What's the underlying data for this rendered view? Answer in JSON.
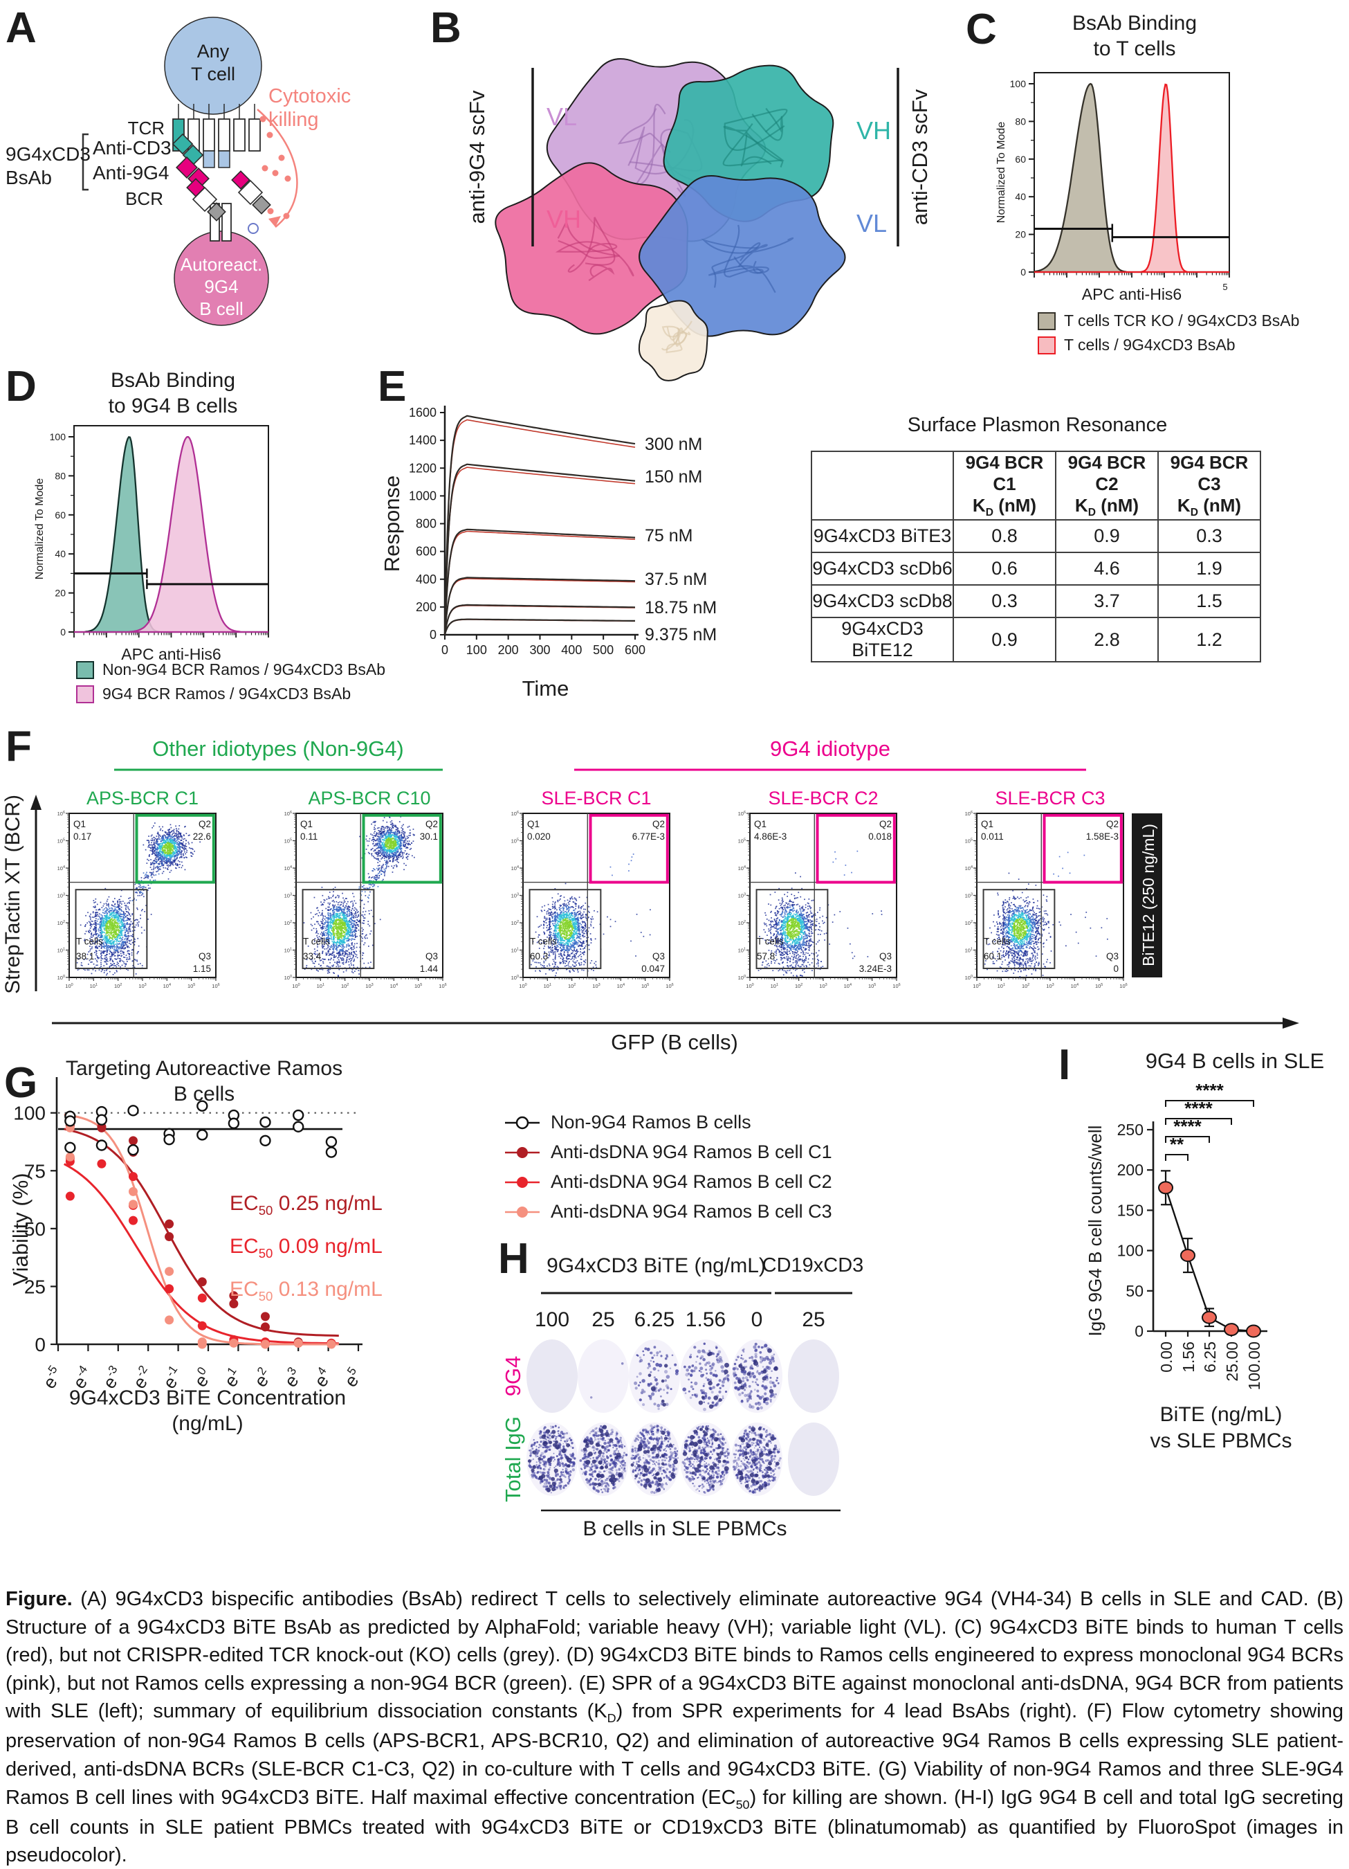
{
  "panels": {
    "a": {
      "label": "A",
      "t_cell1": "Any",
      "t_cell2": "T cell",
      "tcr": "TCR",
      "bsab1": "9G4xCD3",
      "bsab2": "BsAb",
      "anti_cd3": "Anti-CD3",
      "anti_9g4": "Anti-9G4",
      "bcr": "BCR",
      "cyto1": "Cytotoxic",
      "cyto2": "killing",
      "b1": "Autoreact.",
      "b2": "9G4",
      "b3": "B cell",
      "colors": {
        "t_cell": "#aac6e5",
        "b_cell": "#e27fb2",
        "teal": "#35b2a6",
        "magenta": "#e6007e",
        "salmon": "#f4837d"
      }
    },
    "b": {
      "label": "B",
      "left_scfv": "anti-9G4 scFv",
      "right_scfv": "anti-CD3 scFv",
      "vl_left": "VL",
      "vh_left": "VH",
      "vh_right": "VH",
      "vl_right": "VL",
      "colors": {
        "vl_left": "#c98fd4",
        "vh_left": "#ef5f98",
        "vh_right": "#2fb5a8",
        "vl_right": "#6189d6"
      }
    },
    "c": {
      "label": "C"
    },
    "d": {
      "label": "D"
    },
    "e": {
      "label": "E"
    },
    "f": {
      "label": "F"
    },
    "g": {
      "label": "G"
    },
    "h": {
      "label": "H"
    },
    "i": {
      "label": "I"
    }
  },
  "chart_data": [
    {
      "panel": "C",
      "type": "histogram",
      "title_lines": [
        "BsAb Binding",
        "to T cells"
      ],
      "xlabel": "APC anti-His6",
      "ylabel": "Normalized To Mode",
      "yticks": [
        0,
        20,
        40,
        60,
        80,
        100
      ],
      "x_end_tick": "5",
      "series": [
        {
          "name": "T cells TCR KO / 9G4xCD3 BsAb",
          "center": 0.29,
          "sigma": 0.05,
          "left_widen": 1.7,
          "height": 100,
          "fill": "#bab4a2",
          "stroke": "#35322a"
        },
        {
          "name": "T cells  / 9G4xCD3 BsAb",
          "center": 0.675,
          "sigma": 0.03,
          "left_widen": 1.15,
          "height": 100,
          "fill": "#f7bcc0",
          "stroke": "#ec1c24"
        }
      ],
      "gates": [
        {
          "y": 23,
          "x0": 0,
          "x1": 0.4
        },
        {
          "y": 18.5,
          "x0": 0.4,
          "x1": 1
        }
      ]
    },
    {
      "panel": "D",
      "type": "histogram",
      "title_lines": [
        "BsAb Binding",
        "to 9G4 B cells"
      ],
      "xlabel": "APC anti-His6",
      "ylabel": "Normalized To Mode",
      "yticks": [
        0,
        20,
        40,
        60,
        80,
        100
      ],
      "series": [
        {
          "name": "Non-9G4 BCR Ramos / 9G4xCD3 BsAb",
          "center": 0.285,
          "sigma": 0.042,
          "left_widen": 1.5,
          "height": 100,
          "fill": "#79bcad",
          "stroke": "#14332d"
        },
        {
          "name": "9G4 BCR Ramos / 9G4xCD3 BsAb",
          "center": 0.585,
          "sigma": 0.075,
          "left_widen": 1.1,
          "height": 100,
          "fill": "#f0c3dd",
          "stroke": "#b02f94"
        }
      ],
      "gates": [
        {
          "y": 30,
          "x0": 0,
          "x1": 0.375
        },
        {
          "y": 24.5,
          "x0": 0.375,
          "x1": 1
        }
      ]
    },
    {
      "panel": "E",
      "type": "line",
      "name": "SPR sensorgram",
      "ylabel": "Response",
      "xlabel": "Time",
      "xlim": [
        0,
        600
      ],
      "ylim": [
        0,
        1600
      ],
      "xtick_step": 100,
      "ytick_step": 200,
      "curves": [
        {
          "label": "300 nM",
          "peak": 1580,
          "end": 1375,
          "label_y": 650
        },
        {
          "label": "150 nM",
          "peak": 1230,
          "end": 1108,
          "label_y": 697
        },
        {
          "label": "75 nM",
          "peak": 760,
          "end": 700,
          "label_y": 782
        },
        {
          "label": "37.5 nM",
          "peak": 412,
          "end": 388,
          "label_y": 845
        },
        {
          "label": "18.75 nM",
          "peak": 215,
          "end": 198,
          "label_y": 886
        },
        {
          "label": "9.375 nM",
          "peak": 112,
          "end": 100,
          "label_y": 925
        }
      ]
    },
    {
      "panel": "E",
      "type": "table",
      "title": "Surface Plasmon Resonance",
      "col_groups": [
        "9G4 BCR C1",
        "9G4 BCR C2",
        "9G4 BCR C3"
      ],
      "kd_pre": "K",
      "kd_sub": "D",
      "kd_unit": " (nM)",
      "rows": [
        [
          "9G4xCD3 BiTE3",
          "0.8",
          "0.9",
          "0.3"
        ],
        [
          "9G4xCD3 scDb6",
          "0.6",
          "4.6",
          "1.9"
        ],
        [
          "9G4xCD3 scDb8",
          "0.3",
          "3.7",
          "1.5"
        ],
        [
          "9G4xCD3 BiTE12",
          "0.9",
          "2.8",
          "1.2"
        ]
      ]
    },
    {
      "panel": "F",
      "type": "flow_quadrants",
      "xlabel": "GFP (B cells)",
      "ylabel": "StrepTactin XT (BCR)",
      "side_label": "BiTE12 (250 ng/mL)",
      "decades": 7,
      "group_headers": [
        {
          "label": "Other idiotypes (Non-9G4)",
          "color": "#1fa84f"
        },
        {
          "label": "9G4 idiotype",
          "color": "#ec008c"
        }
      ],
      "plots": [
        {
          "title": "APS-BCR C1",
          "gate_color": "#1fa84f",
          "q1": "0.17",
          "q2": "22.6",
          "q3": "1.15",
          "tcells": "38.1",
          "b_cluster": true
        },
        {
          "title": "APS-BCR C10",
          "gate_color": "#1fa84f",
          "q1": "0.11",
          "q2": "30.1",
          "q3": "1.44",
          "tcells": "33.4",
          "b_cluster": true
        },
        {
          "title": "SLE-BCR C1",
          "gate_color": "#ec008c",
          "q1": "0.020",
          "q2": "6.77E-3",
          "q3": "0.047",
          "tcells": "60.3",
          "b_cluster": false
        },
        {
          "title": "SLE-BCR C2",
          "gate_color": "#ec008c",
          "q1": "4.86E-3",
          "q2": "0.018",
          "q3": "3.24E-3",
          "tcells": "57.8",
          "b_cluster": false
        },
        {
          "title": "SLE-BCR C3",
          "gate_color": "#ec008c",
          "q1": "0.011",
          "q2": "1.58E-3",
          "q3": "0",
          "tcells": "60.1",
          "b_cluster": false
        }
      ]
    },
    {
      "panel": "G",
      "type": "scatter",
      "title": "Targeting Autoreactive Ramos B cells",
      "xlabel": "9G4xCD3 BiTE Concentration (ng/mL)",
      "ylabel": "Viability (%)",
      "yticks": [
        0,
        25,
        50,
        75,
        100
      ],
      "xtick_exponents": [
        -5,
        -4,
        -3,
        -2,
        -1,
        0,
        1,
        2,
        3,
        4,
        5
      ],
      "ref_lines": {
        "dotted_y": 100,
        "solid_y": 93
      },
      "series": [
        {
          "name": "Non-9G4 Ramos B cells",
          "marker": "open",
          "color": "#1a1a1a",
          "points": [
            [
              -4.6,
              98.5
            ],
            [
              -4.6,
              96.5
            ],
            [
              -4.6,
              85
            ],
            [
              -3.55,
              100.5
            ],
            [
              -3.55,
              97
            ],
            [
              -3.55,
              86
            ],
            [
              -2.5,
              101
            ],
            [
              -2.5,
              84
            ],
            [
              -1.3,
              91
            ],
            [
              -1.3,
              88.5
            ],
            [
              -0.2,
              103
            ],
            [
              -0.2,
              90.5
            ],
            [
              0.85,
              99
            ],
            [
              0.85,
              95.5
            ],
            [
              1.9,
              96
            ],
            [
              1.9,
              88
            ],
            [
              3.0,
              99
            ],
            [
              3.0,
              94
            ],
            [
              4.1,
              87.5
            ],
            [
              4.1,
              83
            ]
          ]
        },
        {
          "name": "Anti-dsDNA 9G4 Ramos B cell C1",
          "marker": "filled",
          "color": "#b01e24",
          "ec50": {
            "pre": "EC",
            "sub": "50",
            "rest": " 0.25 ng/mL"
          },
          "curve": {
            "top": 95.5,
            "bottom": 3.5,
            "lnec50": -1.386,
            "hill": 1.05
          },
          "points": [
            [
              -4.6,
              97
            ],
            [
              -4.6,
              94.5
            ],
            [
              -3.55,
              94
            ],
            [
              -3.55,
              93.5
            ],
            [
              -2.5,
              88
            ],
            [
              -2.5,
              83
            ],
            [
              -1.3,
              52
            ],
            [
              -1.3,
              46.5
            ],
            [
              -0.2,
              27
            ],
            [
              0.85,
              21
            ],
            [
              0.85,
              17.5
            ],
            [
              1.9,
              12
            ],
            [
              1.9,
              7.5
            ],
            [
              3.0,
              1
            ],
            [
              3.0,
              0.5
            ],
            [
              4.1,
              0.5
            ]
          ]
        },
        {
          "name": "Anti-dsDNA 9G4 Ramos B cell C2",
          "marker": "filled",
          "color": "#e8242c",
          "ec50": {
            "pre": "EC",
            "sub": "50",
            "rest": " 0.09 ng/mL"
          },
          "curve": {
            "top": 85,
            "bottom": 0.3,
            "lnec50": -2.41,
            "hill": 1.0
          },
          "points": [
            [
              -4.6,
              80.5
            ],
            [
              -4.6,
              79
            ],
            [
              -4.6,
              64
            ],
            [
              -3.55,
              78
            ],
            [
              -2.5,
              72.5
            ],
            [
              -2.5,
              60
            ],
            [
              -2.5,
              53.5
            ],
            [
              -1.3,
              24
            ],
            [
              -0.2,
              20
            ],
            [
              -0.2,
              8
            ],
            [
              0.85,
              2
            ],
            [
              0.85,
              1
            ],
            [
              1.9,
              1
            ],
            [
              3.0,
              0.5
            ],
            [
              4.1,
              0.5
            ]
          ]
        },
        {
          "name": "Anti-dsDNA 9G4 Ramos B cell C3",
          "marker": "filled",
          "color": "#f5907f",
          "ec50": {
            "pre": "EC",
            "sub": "50",
            "rest": " 0.13 ng/mL"
          },
          "curve": {
            "top": 100,
            "bottom": 0,
            "lnec50": -2.04,
            "hill": 1.75
          },
          "points": [
            [
              -4.6,
              93.5
            ],
            [
              -4.6,
              81
            ],
            [
              -3.55,
              96.5
            ],
            [
              -3.55,
              85.5
            ],
            [
              -2.5,
              66
            ],
            [
              -2.5,
              60.5
            ],
            [
              -1.3,
              31.5
            ],
            [
              -1.3,
              10.5
            ],
            [
              -0.2,
              1
            ],
            [
              -0.2,
              0
            ],
            [
              0.85,
              0.5
            ],
            [
              1.9,
              0
            ],
            [
              3.0,
              0.5
            ],
            [
              4.1,
              0
            ]
          ]
        }
      ]
    },
    {
      "panel": "H",
      "type": "fluorospot",
      "header_left": "9G4xCD3 BiTE (ng/mL)",
      "header_right": "CD19xCD3",
      "cols_left": [
        "100",
        "25",
        "6.25",
        "1.56",
        "0"
      ],
      "col_right": "25",
      "row_labels": [
        {
          "label": "9G4",
          "color": "#ec008c"
        },
        {
          "label": "Total IgG",
          "color": "#1fa84f"
        }
      ],
      "footer": "B cells in SLE PBMCs",
      "spot_counts": [
        [
          0,
          2,
          80,
          130,
          170,
          0
        ],
        [
          380,
          400,
          410,
          400,
          410,
          0
        ]
      ]
    },
    {
      "panel": "I",
      "type": "line",
      "title": "9G4 B cells in SLE",
      "ylabel": "IgG 9G4 B cell counts/well",
      "xlabel": "BiTE (ng/mL)",
      "xlabel2": "vs SLE PBMCs",
      "categories": [
        "0.00",
        "1.56",
        "6.25",
        "25.00",
        "100.00"
      ],
      "values": [
        178,
        94,
        17,
        2,
        0
      ],
      "errors": [
        21,
        21,
        11,
        3,
        2
      ],
      "yticks": [
        0,
        50,
        100,
        150,
        200,
        250
      ],
      "marker_color": "#ef6a5a",
      "significance": [
        {
          "from": 0,
          "to": 1,
          "label": "**"
        },
        {
          "from": 0,
          "to": 2,
          "label": "****"
        },
        {
          "from": 0,
          "to": 3,
          "label": "****"
        },
        {
          "from": 0,
          "to": 4,
          "label": "****"
        }
      ]
    }
  ],
  "caption": {
    "runs": [
      {
        "t": "Figure.",
        "b": 1
      },
      {
        "t": " (A) 9G4xCD3 bispecific antibodies (BsAb) redirect T cells to selectively eliminate autoreactive 9G4 (VH4-34) B cells in SLE and CAD. (B) Structure of a 9G4xCD3 BiTE BsAb as predicted by AlphaFold; variable heavy (VH); variable light (VL). (C) 9G4xCD3 BiTE binds to human T cells (red), but not CRISPR-edited TCR knock-out (KO) cells (grey). (D) 9G4xCD3 BiTE binds to Ramos cells engineered to express monoclonal 9G4 BCRs (pink), but not Ramos cells expressing a non-9G4 BCR (green). (E) SPR of a 9G4xCD3 BiTE against monoclonal anti-dsDNA, 9G4 BCR from patients with SLE (left); summary of equilibrium dissociation constants (K"
      },
      {
        "t": "D",
        "s": 1
      },
      {
        "t": ") from SPR experiments for 4 lead BsAbs (right). (F) Flow cytometry showing preservation of non-9G4 Ramos B cells (APS-BCR1, APS-BCR10, Q2) and elimination of autoreactive 9G4 Ramos B cells expressing SLE patient-derived, anti-dsDNA BCRs (SLE-BCR C1-C3, Q2) in co-culture with T cells and 9G4xCD3 BiTE. (G) Viability of non-9G4 Ramos and three SLE-9G4 Ramos B cell lines with  9G4xCD3 BiTE. Half maximal effective concentration (EC"
      },
      {
        "t": "50",
        "s": 1
      },
      {
        "t": ") for killing are shown. (H-I) IgG 9G4 B cell and total IgG secreting B cell counts in SLE patient PBMCs treated with 9G4xCD3 BiTE or CD19xCD3 BiTE (blinatumomab) as quantified by FluoroSpot (images in pseudocolor)."
      }
    ]
  }
}
